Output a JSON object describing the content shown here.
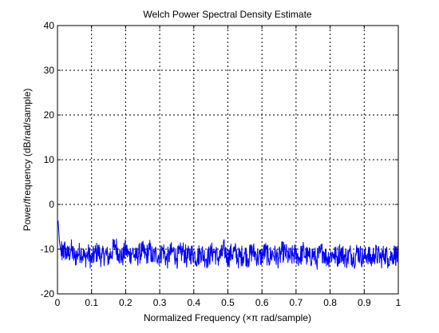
{
  "chart_data": {
    "type": "line",
    "title": "Welch Power Spectral Density Estimate",
    "xlabel": "Normalized Frequency  (×π rad/sample)",
    "ylabel": "Power/frequency (dB/rad/sample)",
    "xlim": [
      0,
      1
    ],
    "ylim": [
      -20,
      40
    ],
    "x_ticks": [
      0,
      0.1,
      0.2,
      0.3,
      0.4,
      0.5,
      0.6,
      0.7,
      0.8,
      0.9,
      1
    ],
    "x_tick_labels": [
      "0",
      "0.1",
      "0.2",
      "0.3",
      "0.4",
      "0.5",
      "0.6",
      "0.7",
      "0.8",
      "0.9",
      "1"
    ],
    "y_ticks": [
      -20,
      -10,
      0,
      10,
      20,
      30,
      40
    ],
    "y_tick_labels": [
      "-20",
      "-10",
      "0",
      "10",
      "20",
      "30",
      "40"
    ],
    "grid": true,
    "grid_style": "dotted",
    "legend": "none",
    "series": [
      {
        "color": "#0000ff",
        "x": [
          0,
          0.002,
          0.004,
          0.006,
          0.008,
          0.01,
          0.015,
          0.02,
          0.03,
          0.04,
          0.05,
          0.06,
          0.07,
          0.08,
          0.09,
          0.1,
          0.11,
          0.12,
          0.13,
          0.14,
          0.15,
          0.16,
          0.17,
          0.18,
          0.19,
          0.2,
          0.21,
          0.22,
          0.23,
          0.24,
          0.25,
          0.26,
          0.27,
          0.28,
          0.29,
          0.3,
          0.31,
          0.32,
          0.33,
          0.34,
          0.35,
          0.36,
          0.37,
          0.38,
          0.39,
          0.4,
          0.41,
          0.42,
          0.43,
          0.44,
          0.45,
          0.46,
          0.47,
          0.48,
          0.49,
          0.5,
          0.51,
          0.52,
          0.53,
          0.54,
          0.55,
          0.56,
          0.57,
          0.58,
          0.59,
          0.6,
          0.61,
          0.62,
          0.63,
          0.64,
          0.65,
          0.66,
          0.67,
          0.68,
          0.69,
          0.7,
          0.71,
          0.72,
          0.73,
          0.74,
          0.75,
          0.76,
          0.77,
          0.78,
          0.79,
          0.8,
          0.81,
          0.82,
          0.83,
          0.84,
          0.85,
          0.86,
          0.87,
          0.88,
          0.89,
          0.9,
          0.91,
          0.92,
          0.93,
          0.94,
          0.95,
          0.96,
          0.97,
          0.98,
          0.99,
          1
        ],
        "y": [
          -4,
          -3.8,
          -6,
          -8.5,
          -9.5,
          -10.5,
          -11,
          -10,
          -11.5,
          -10,
          -12,
          -11,
          -10.5,
          -12,
          -11,
          -12.5,
          -11,
          -10.5,
          -12,
          -11,
          -12,
          -10.5,
          -9,
          -11,
          -12,
          -10,
          -11.5,
          -10.5,
          -12,
          -11,
          -10.5,
          -11.5,
          -10,
          -12,
          -11,
          -11.5,
          -10,
          -12.5,
          -11,
          -10.5,
          -12,
          -11,
          -10.5,
          -12,
          -11,
          -11,
          -12,
          -10.5,
          -11.5,
          -12,
          -11,
          -10.5,
          -12,
          -11.5,
          -10,
          -12,
          -11,
          -10.5,
          -12,
          -11.5,
          -11,
          -12,
          -10.5,
          -11,
          -12,
          -11.5,
          -10.5,
          -12,
          -11,
          -11.5,
          -12,
          -10.5,
          -11,
          -12,
          -11.5,
          -11,
          -12,
          -10.5,
          -11.5,
          -12,
          -11,
          -12.5,
          -11,
          -10.5,
          -12,
          -11.5,
          -11,
          -12,
          -10.5,
          -11.5,
          -12,
          -11,
          -12,
          -10.5,
          -11.5,
          -12,
          -11,
          -12.5,
          -11,
          -11.5,
          -12,
          -11,
          -12,
          -11.5,
          -11,
          -12
        ]
      }
    ]
  }
}
